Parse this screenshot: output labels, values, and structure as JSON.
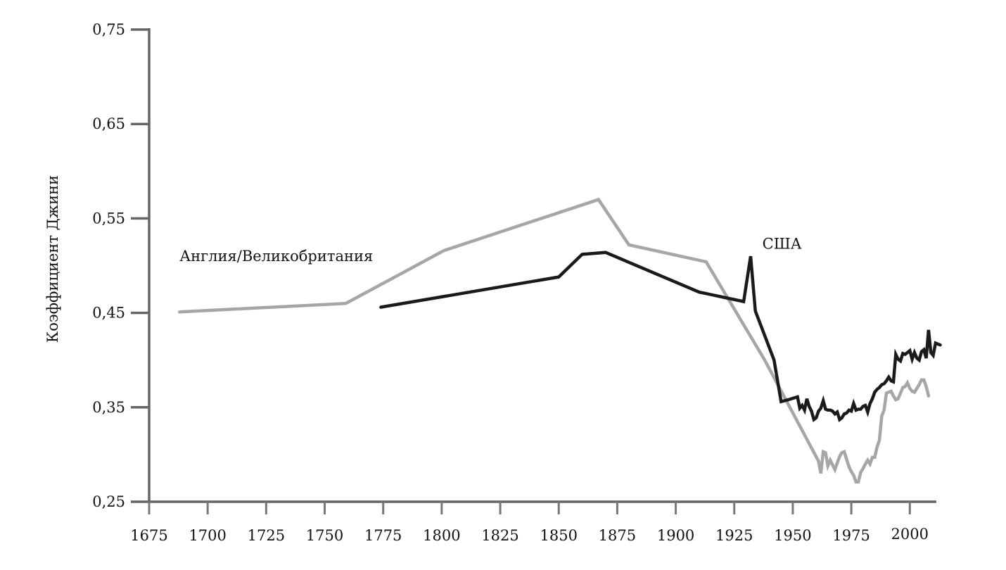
{
  "chart_data": {
    "type": "line",
    "title": "",
    "xlabel": "",
    "ylabel": "Коэффициент Джини",
    "xlim": [
      1675,
      2015
    ],
    "ylim": [
      0.25,
      0.75
    ],
    "grid": false,
    "legend": "inline labels",
    "x_ticks": [
      "1675",
      "1700",
      "1725",
      "1750",
      "1775",
      "1800",
      "1825",
      "1850",
      "1875",
      "1900",
      "1925",
      "1950",
      "1975",
      "2000"
    ],
    "y_ticks": [
      "0,25",
      "0,35",
      "0,45",
      "0,55",
      "0,65",
      "0,75"
    ],
    "series": [
      {
        "name": "Англия/Великобритания",
        "color": "#a6a6a6",
        "label_pos": {
          "year": 1688,
          "value": 0.51
        },
        "points": [
          [
            1688,
            0.451
          ],
          [
            1759,
            0.46
          ],
          [
            1801,
            0.516
          ],
          [
            1867,
            0.57
          ],
          [
            1880,
            0.522
          ],
          [
            1913,
            0.504
          ],
          [
            1938,
            0.4
          ],
          [
            1961,
            0.293
          ],
          [
            1962,
            0.28
          ],
          [
            1963,
            0.303
          ],
          [
            1964,
            0.302
          ],
          [
            1965,
            0.288
          ],
          [
            1966,
            0.294
          ],
          [
            1967,
            0.289
          ],
          [
            1968,
            0.284
          ],
          [
            1969,
            0.291
          ],
          [
            1970,
            0.298
          ],
          [
            1971,
            0.302
          ],
          [
            1972,
            0.303
          ],
          [
            1973,
            0.295
          ],
          [
            1974,
            0.287
          ],
          [
            1975,
            0.282
          ],
          [
            1976,
            0.278
          ],
          [
            1977,
            0.271
          ],
          [
            1978,
            0.271
          ],
          [
            1979,
            0.281
          ],
          [
            1980,
            0.285
          ],
          [
            1981,
            0.29
          ],
          [
            1982,
            0.294
          ],
          [
            1983,
            0.29
          ],
          [
            1984,
            0.297
          ],
          [
            1985,
            0.297
          ],
          [
            1986,
            0.308
          ],
          [
            1987,
            0.315
          ],
          [
            1988,
            0.341
          ],
          [
            1989,
            0.347
          ],
          [
            1990,
            0.365
          ],
          [
            1991,
            0.366
          ],
          [
            1992,
            0.367
          ],
          [
            1993,
            0.362
          ],
          [
            1994,
            0.358
          ],
          [
            1995,
            0.359
          ],
          [
            1996,
            0.365
          ],
          [
            1997,
            0.371
          ],
          [
            1998,
            0.372
          ],
          [
            1999,
            0.376
          ],
          [
            2000,
            0.37
          ],
          [
            2001,
            0.367
          ],
          [
            2002,
            0.366
          ],
          [
            2003,
            0.37
          ],
          [
            2004,
            0.374
          ],
          [
            2005,
            0.379
          ],
          [
            2006,
            0.379
          ],
          [
            2007,
            0.372
          ],
          [
            2008,
            0.362
          ]
        ]
      },
      {
        "name": "США",
        "color": "#1a1a1a",
        "label_pos": {
          "year": 1937,
          "value": 0.523
        },
        "points": [
          [
            1774,
            0.456
          ],
          [
            1850,
            0.488
          ],
          [
            1860,
            0.512
          ],
          [
            1870,
            0.514
          ],
          [
            1910,
            0.472
          ],
          [
            1929,
            0.462
          ],
          [
            1932,
            0.51
          ],
          [
            1934,
            0.452
          ],
          [
            1942,
            0.4
          ],
          [
            1945,
            0.356
          ],
          [
            1948,
            0.358
          ],
          [
            1952,
            0.361
          ],
          [
            1953,
            0.349
          ],
          [
            1954,
            0.352
          ],
          [
            1955,
            0.347
          ],
          [
            1956,
            0.359
          ],
          [
            1957,
            0.351
          ],
          [
            1958,
            0.346
          ],
          [
            1959,
            0.337
          ],
          [
            1960,
            0.339
          ],
          [
            1961,
            0.346
          ],
          [
            1962,
            0.349
          ],
          [
            1963,
            0.357
          ],
          [
            1964,
            0.348
          ],
          [
            1965,
            0.347
          ],
          [
            1966,
            0.347
          ],
          [
            1967,
            0.346
          ],
          [
            1968,
            0.343
          ],
          [
            1969,
            0.345
          ],
          [
            1970,
            0.337
          ],
          [
            1971,
            0.339
          ],
          [
            1972,
            0.343
          ],
          [
            1973,
            0.344
          ],
          [
            1974,
            0.347
          ],
          [
            1975,
            0.346
          ],
          [
            1976,
            0.354
          ],
          [
            1977,
            0.347
          ],
          [
            1978,
            0.348
          ],
          [
            1979,
            0.348
          ],
          [
            1980,
            0.351
          ],
          [
            1981,
            0.352
          ],
          [
            1982,
            0.345
          ],
          [
            1983,
            0.354
          ],
          [
            1984,
            0.359
          ],
          [
            1985,
            0.366
          ],
          [
            1986,
            0.369
          ],
          [
            1987,
            0.371
          ],
          [
            1988,
            0.374
          ],
          [
            1989,
            0.375
          ],
          [
            1990,
            0.378
          ],
          [
            1991,
            0.382
          ],
          [
            1992,
            0.378
          ],
          [
            1993,
            0.377
          ],
          [
            1994,
            0.406
          ],
          [
            1995,
            0.401
          ],
          [
            1996,
            0.399
          ],
          [
            1997,
            0.407
          ],
          [
            1998,
            0.406
          ],
          [
            1999,
            0.408
          ],
          [
            2000,
            0.41
          ],
          [
            2001,
            0.401
          ],
          [
            2002,
            0.408
          ],
          [
            2003,
            0.402
          ],
          [
            2004,
            0.4
          ],
          [
            2005,
            0.409
          ],
          [
            2006,
            0.411
          ],
          [
            2007,
            0.402
          ],
          [
            2008,
            0.432
          ],
          [
            2009,
            0.408
          ],
          [
            2010,
            0.405
          ],
          [
            2011,
            0.418
          ],
          [
            2012,
            0.417
          ],
          [
            2013,
            0.416
          ]
        ]
      }
    ]
  }
}
